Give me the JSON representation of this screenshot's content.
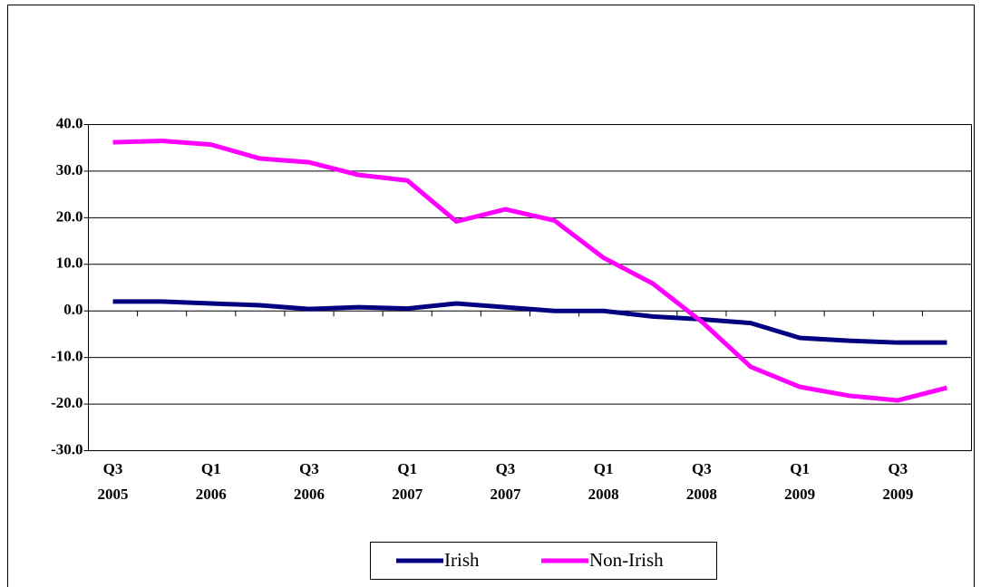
{
  "chart_data": {
    "type": "line",
    "categories": [
      "Q3\n2005",
      null,
      "Q1\n2006",
      null,
      "Q3\n2006",
      null,
      "Q1\n2007",
      null,
      "Q3\n2007",
      null,
      "Q1\n2008",
      null,
      "Q3\n2008",
      null,
      "Q1\n2009",
      null,
      "Q3\n2009",
      null
    ],
    "series": [
      {
        "name": "Irish",
        "color": "#000080",
        "values": [
          2.0,
          2.0,
          1.6,
          1.2,
          0.4,
          0.8,
          0.5,
          1.6,
          0.8,
          0.0,
          0.0,
          -1.2,
          -1.8,
          -2.6,
          -5.8,
          -6.4,
          -6.8,
          -6.8
        ]
      },
      {
        "name": "Non-Irish",
        "color": "#ff00ff",
        "values": [
          36.2,
          36.5,
          35.7,
          32.7,
          31.9,
          29.2,
          28.0,
          19.2,
          21.8,
          19.4,
          11.4,
          5.9,
          -2.3,
          -12.0,
          -16.3,
          -18.2,
          -19.2,
          -16.5
        ]
      }
    ],
    "ylim": [
      -30,
      40
    ],
    "yticks": [
      {
        "value": -30,
        "label": "-30.0"
      },
      {
        "value": -20,
        "label": "-20.0"
      },
      {
        "value": -10,
        "label": "-10.0"
      },
      {
        "value": 0,
        "label": "0.0"
      },
      {
        "value": 10,
        "label": "10.0"
      },
      {
        "value": 20,
        "label": "20.0"
      },
      {
        "value": 30,
        "label": "30.0"
      },
      {
        "value": 40,
        "label": "40.0"
      }
    ],
    "grid": true,
    "legend": "bottom"
  }
}
